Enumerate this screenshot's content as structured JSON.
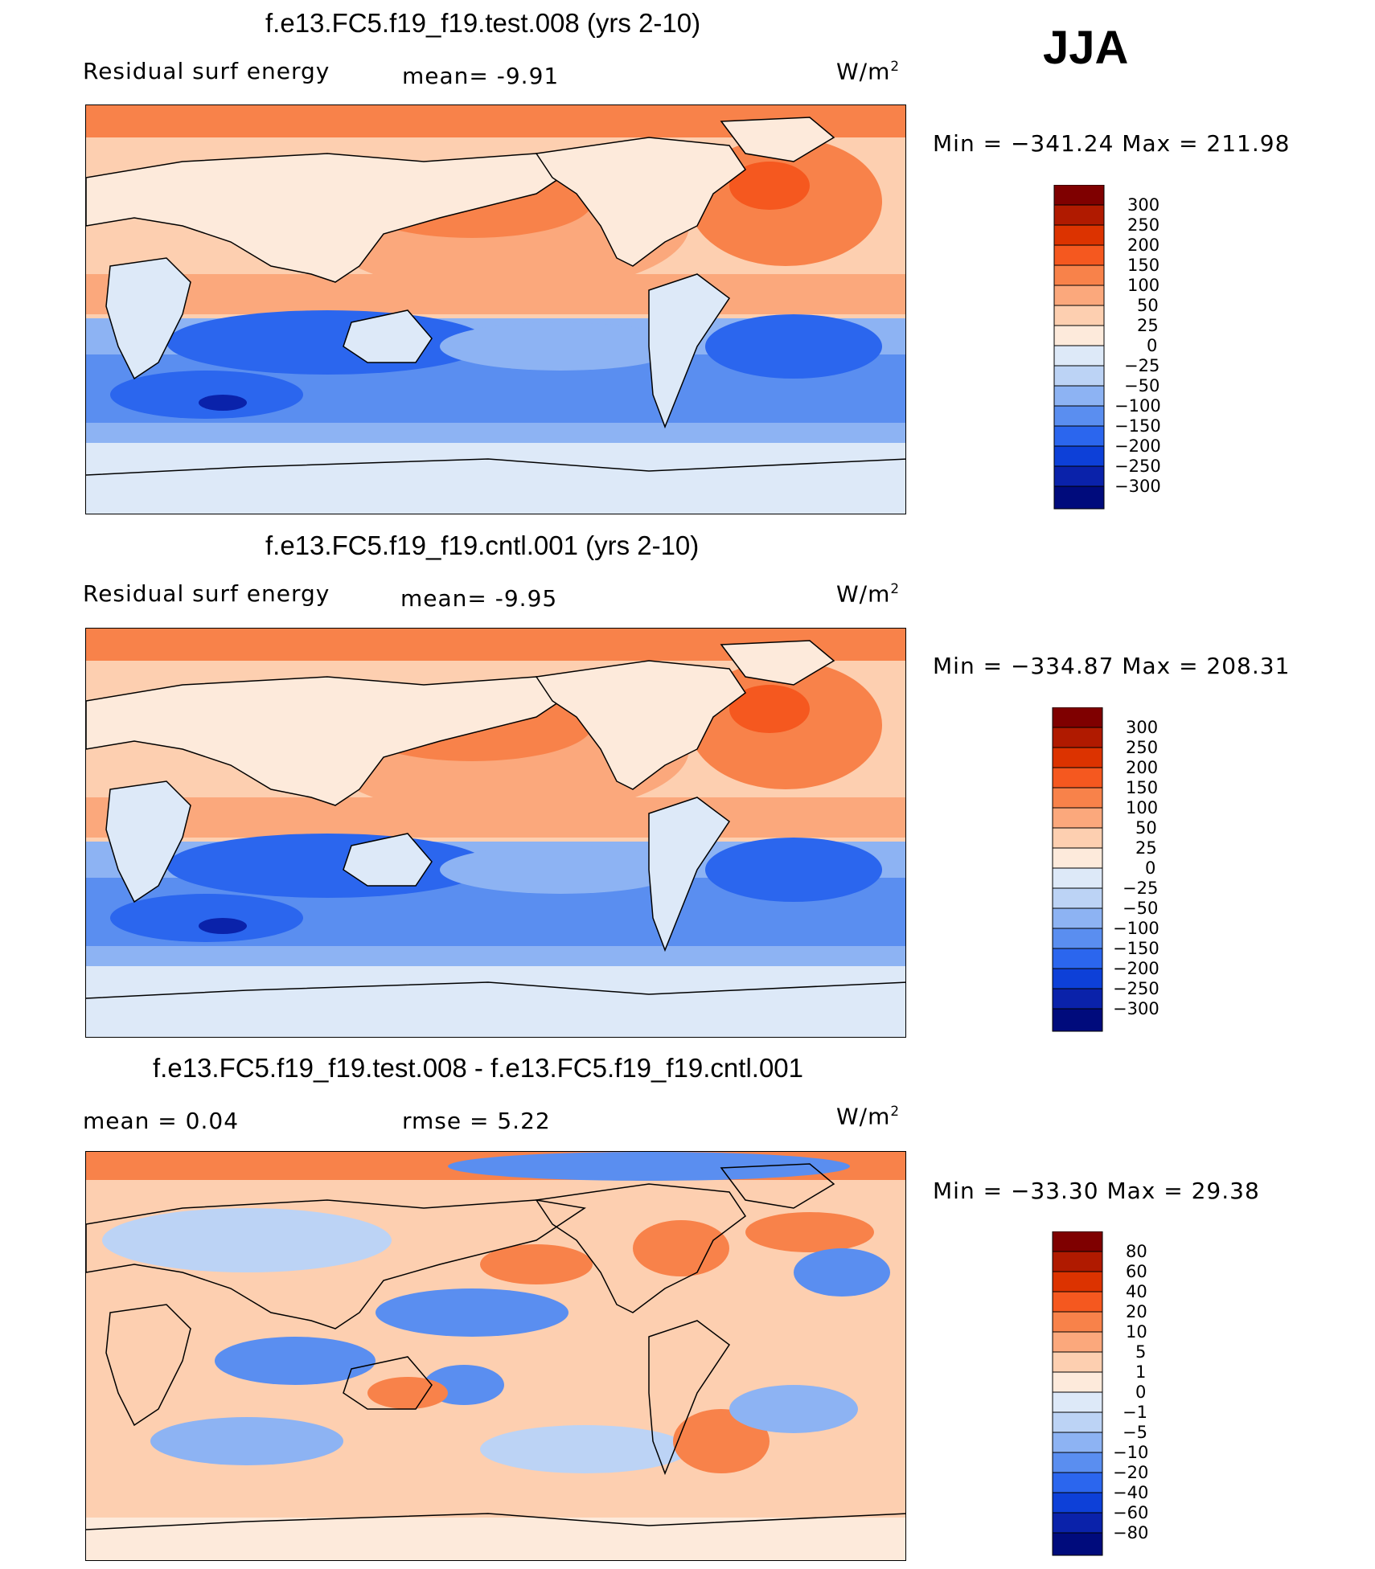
{
  "season": "JJA",
  "panels": [
    {
      "title": "f.e13.FC5.f19_f19.test.008 (yrs 2-10)",
      "left_label": "Residual surf energy",
      "mid_label": "mean=   -9.91",
      "units": "W/m",
      "units_sup": "2",
      "minmax": "Min  =  −341.24  Max  =  211.98",
      "colorbar_labels": [
        "300",
        "250",
        "200",
        "150",
        "100",
        "50",
        "25",
        "0",
        "−25",
        "−50",
        "−100",
        "−150",
        "−200",
        "−250",
        "−300"
      ]
    },
    {
      "title": "f.e13.FC5.f19_f19.cntl.001 (yrs 2-10)",
      "left_label": "Residual surf energy",
      "mid_label": "mean=   -9.95",
      "units": "W/m",
      "units_sup": "2",
      "minmax": "Min  =  −334.87  Max  =  208.31",
      "colorbar_labels": [
        "300",
        "250",
        "200",
        "150",
        "100",
        "50",
        "25",
        "0",
        "−25",
        "−50",
        "−100",
        "−150",
        "−200",
        "−250",
        "−300"
      ]
    },
    {
      "title": "f.e13.FC5.f19_f19.test.008 - f.e13.FC5.f19_f19.cntl.001",
      "left_label": "mean =     0.04",
      "mid_label": "rmse =     5.22",
      "units": "W/m",
      "units_sup": "2",
      "minmax": "Min  =  −33.30  Max  =    29.38",
      "colorbar_labels": [
        "80",
        "60",
        "40",
        "20",
        "10",
        "5",
        "1",
        "0",
        "−1",
        "−5",
        "−10",
        "−20",
        "−40",
        "−60",
        "−80"
      ]
    }
  ],
  "colors": {
    "colorbar": [
      "#7f0000",
      "#b01a00",
      "#dc3300",
      "#f5581f",
      "#f8824a",
      "#fba87c",
      "#fdcfb0",
      "#fdeadb",
      "#dde9f8",
      "#bcd3f5",
      "#8db3f3",
      "#5a8ef0",
      "#2b66ee",
      "#0d40d8",
      "#0a22aa",
      "#000b7c"
    ],
    "ocean_positive": "#f9a07a",
    "ocean_negative": "#5f8ff0",
    "land": "#fde8d8",
    "coast": "#000000"
  }
}
